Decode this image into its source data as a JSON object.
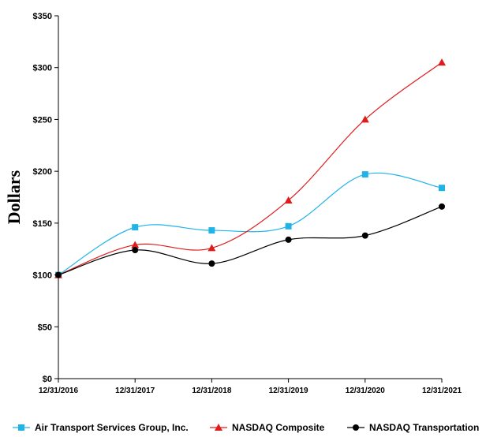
{
  "chart_data": {
    "type": "line",
    "title": "",
    "xlabel": "",
    "ylabel": "Dollars",
    "ylim": [
      0,
      350
    ],
    "yticks": [
      0,
      50,
      100,
      150,
      200,
      250,
      300,
      350
    ],
    "ytick_labels": [
      "$0",
      "$50",
      "$100",
      "$150",
      "$200",
      "$250",
      "$300",
      "$350"
    ],
    "categories": [
      "12/31/2016",
      "12/31/2017",
      "12/31/2018",
      "12/31/2019",
      "12/31/2020",
      "12/31/2021"
    ],
    "grid": false,
    "legend_position": "bottom",
    "series": [
      {
        "name": "Air Transport Services Group, Inc.",
        "color": "#1fb3e8",
        "marker": "square",
        "values": [
          100,
          146,
          143,
          147,
          197,
          184
        ]
      },
      {
        "name": "NASDAQ Composite",
        "color": "#e01b1b",
        "marker": "triangle",
        "values": [
          100,
          129,
          126,
          172,
          250,
          305
        ]
      },
      {
        "name": "NASDAQ Transportation",
        "color": "#000000",
        "marker": "circle",
        "values": [
          100,
          124,
          111,
          134,
          138,
          166
        ]
      }
    ]
  }
}
